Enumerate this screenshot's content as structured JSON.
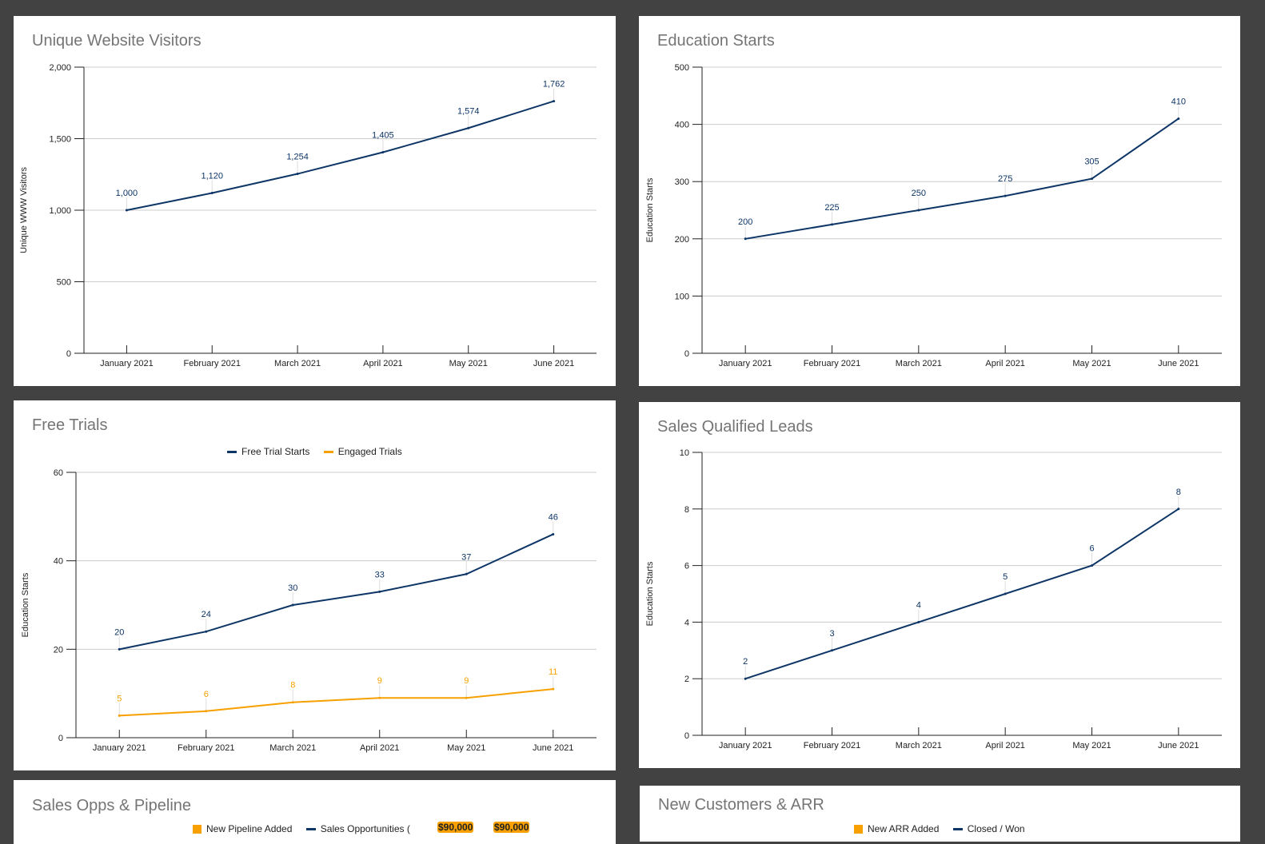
{
  "chart_data": [
    {
      "type": "line",
      "title": "Unique Website Visitors",
      "xlabel": "",
      "ylabel": "Unique WWW Visitors",
      "categories": [
        "January 2021",
        "February 2021",
        "March 2021",
        "April 2021",
        "May 2021",
        "June 2021"
      ],
      "ylim": [
        0,
        2000
      ],
      "yticks": [
        0,
        500,
        1000,
        1500,
        2000
      ],
      "ytick_labels": [
        "0",
        "500",
        "1,000",
        "1,500",
        "2,000"
      ],
      "grid": true,
      "series": [
        {
          "name": "Unique WWW Visitors",
          "color": "#0d3566",
          "values": [
            1000,
            1120,
            1254,
            1405,
            1574,
            1762
          ],
          "labels": [
            "1,000",
            "1,120",
            "1,254",
            "1,405",
            "1,574",
            "1,762"
          ]
        }
      ]
    },
    {
      "type": "line",
      "title": "Education Starts",
      "xlabel": "",
      "ylabel": "Education Starts",
      "categories": [
        "January 2021",
        "February 2021",
        "March 2021",
        "April 2021",
        "May 2021",
        "June 2021"
      ],
      "ylim": [
        0,
        500
      ],
      "yticks": [
        0,
        100,
        200,
        300,
        400,
        500
      ],
      "ytick_labels": [
        "0",
        "100",
        "200",
        "300",
        "400",
        "500"
      ],
      "grid": true,
      "series": [
        {
          "name": "Education Starts",
          "color": "#0d3566",
          "values": [
            200,
            225,
            250,
            275,
            305,
            410
          ],
          "labels": [
            "200",
            "225",
            "250",
            "275",
            "305",
            "410"
          ]
        }
      ]
    },
    {
      "type": "line",
      "title": "Free Trials",
      "xlabel": "",
      "ylabel": "Education Starts",
      "legend": "top",
      "categories": [
        "January 2021",
        "February 2021",
        "March 2021",
        "April 2021",
        "May 2021",
        "June 2021"
      ],
      "ylim": [
        0,
        60
      ],
      "yticks": [
        0,
        20,
        40,
        60
      ],
      "ytick_labels": [
        "0",
        "20",
        "40",
        "60"
      ],
      "grid": true,
      "series": [
        {
          "name": "Free Trial Starts",
          "color": "#0d3566",
          "values": [
            20,
            24,
            30,
            33,
            37,
            46
          ],
          "labels": [
            "20",
            "24",
            "30",
            "33",
            "37",
            "46"
          ]
        },
        {
          "name": "Engaged Trials",
          "color": "#f7a000",
          "values": [
            5,
            6,
            8,
            9,
            9,
            11
          ],
          "labels": [
            "5",
            "6",
            "8",
            "9",
            "9",
            "11"
          ]
        }
      ]
    },
    {
      "type": "line",
      "title": "Sales Qualified Leads",
      "xlabel": "",
      "ylabel": "Education Starts",
      "categories": [
        "January 2021",
        "February 2021",
        "March 2021",
        "April 2021",
        "May 2021",
        "June 2021"
      ],
      "ylim": [
        0,
        10
      ],
      "yticks": [
        0,
        2,
        4,
        6,
        8,
        10
      ],
      "ytick_labels": [
        "0",
        "2",
        "4",
        "6",
        "8",
        "10"
      ],
      "grid": true,
      "series": [
        {
          "name": "Sales Qualified Leads",
          "color": "#0d3566",
          "values": [
            2,
            3,
            4,
            5,
            6,
            8
          ],
          "labels": [
            "2",
            "3",
            "4",
            "5",
            "6",
            "8"
          ]
        }
      ]
    }
  ],
  "partial_panels": [
    {
      "title": "Sales Opps & Pipeline",
      "legend": [
        {
          "name": "New Pipeline Added",
          "color": "#f7a000"
        },
        {
          "name": "Sales Opportunities (",
          "color": "#0d3566"
        }
      ],
      "badges": [
        "$90,000",
        "$90,000"
      ]
    },
    {
      "title": "New Customers & ARR",
      "legend": [
        {
          "name": "New ARR Added",
          "color": "#f7a000"
        },
        {
          "name": "Closed / Won",
          "color": "#0d3566"
        }
      ]
    }
  ]
}
